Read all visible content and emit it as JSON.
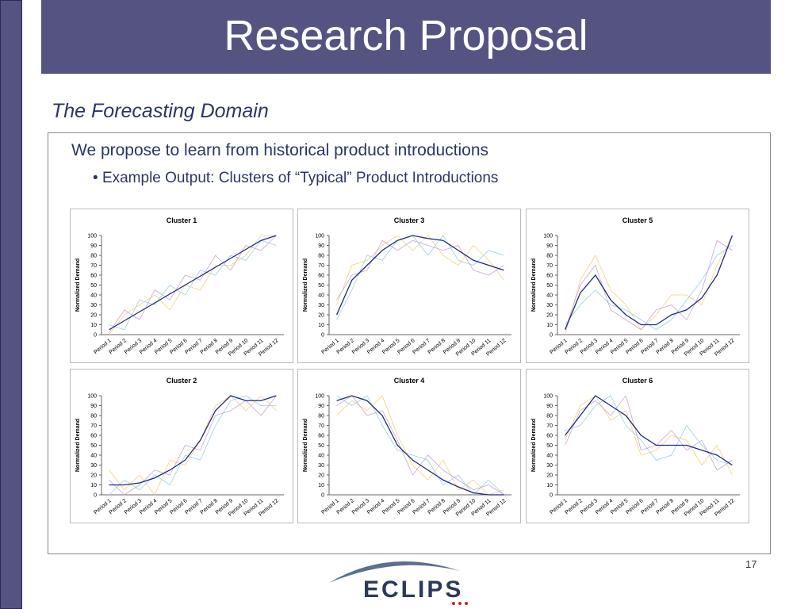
{
  "title": "Research Proposal",
  "subtitle": "The Forecasting Domain",
  "bullets": [
    "We propose to learn from historical product introductions",
    "Example Output: Clusters of “Typical” Product Introductions"
  ],
  "page_number": "17",
  "logo": "ECLIPS",
  "chart_data": [
    {
      "type": "line",
      "title": "Cluster 1",
      "ylabel": "Normalized Demand",
      "categories": [
        "Period 1",
        "Period 2",
        "Period 3",
        "Period 4",
        "Period 5",
        "Period 6",
        "Period 7",
        "Period 8",
        "Period 9",
        "Period 10",
        "Period 11",
        "Period 12"
      ],
      "ylim": [
        0,
        100
      ],
      "yticks": [
        0,
        10,
        20,
        30,
        40,
        50,
        60,
        70,
        80,
        90,
        100
      ],
      "series": [
        {
          "color": "#f5d27a",
          "values": [
            0,
            20,
            30,
            40,
            25,
            50,
            45,
            70,
            70,
            80,
            100,
            100
          ]
        },
        {
          "color": "#9ad0e8",
          "values": [
            10,
            5,
            35,
            30,
            50,
            40,
            65,
            60,
            80,
            75,
            95,
            90
          ]
        },
        {
          "color": "#c9a7d8",
          "values": [
            2,
            25,
            15,
            45,
            35,
            60,
            55,
            80,
            65,
            90,
            85,
            100
          ]
        },
        {
          "color": "#1f2a80",
          "values": [
            5,
            14,
            23,
            32,
            41,
            50,
            59,
            68,
            77,
            86,
            95,
            100
          ]
        }
      ]
    },
    {
      "type": "line",
      "title": "Cluster 3",
      "ylabel": "Normalized Demand",
      "categories": [
        "Period 1",
        "Period 2",
        "Period 3",
        "Period 4",
        "Period 5",
        "Period 6",
        "Period 7",
        "Period 8",
        "Period 9",
        "Period 10",
        "Period 11",
        "Period 12"
      ],
      "ylim": [
        0,
        100
      ],
      "yticks": [
        0,
        10,
        20,
        30,
        40,
        50,
        60,
        70,
        80,
        90,
        100
      ],
      "series": [
        {
          "color": "#f5d27a",
          "values": [
            30,
            70,
            75,
            90,
            100,
            85,
            100,
            80,
            70,
            90,
            75,
            55
          ]
        },
        {
          "color": "#9ad0e8",
          "values": [
            15,
            45,
            80,
            75,
            95,
            100,
            80,
            100,
            75,
            70,
            85,
            80
          ]
        },
        {
          "color": "#c9a7d8",
          "values": [
            35,
            60,
            65,
            95,
            85,
            95,
            90,
            85,
            90,
            65,
            60,
            70
          ]
        },
        {
          "color": "#1f2a80",
          "values": [
            20,
            55,
            70,
            85,
            95,
            100,
            97,
            95,
            85,
            75,
            70,
            65
          ]
        }
      ]
    },
    {
      "type": "line",
      "title": "Cluster 5",
      "ylabel": "Normalized Demand",
      "categories": [
        "Period 1",
        "Period 2",
        "Period 3",
        "Period 4",
        "Period 5",
        "Period 6",
        "Period 7",
        "Period 8",
        "Period 9",
        "Period 10",
        "Period 11",
        "Period 12"
      ],
      "ylim": [
        0,
        100
      ],
      "yticks": [
        0,
        10,
        20,
        30,
        40,
        50,
        60,
        70,
        80,
        90,
        100
      ],
      "series": [
        {
          "color": "#f5d27a",
          "values": [
            0,
            55,
            80,
            45,
            30,
            5,
            20,
            40,
            40,
            30,
            70,
            100
          ]
        },
        {
          "color": "#9ad0e8",
          "values": [
            10,
            30,
            45,
            30,
            25,
            15,
            5,
            15,
            35,
            55,
            80,
            90
          ]
        },
        {
          "color": "#c9a7d8",
          "values": [
            5,
            50,
            70,
            25,
            15,
            5,
            25,
            30,
            15,
            45,
            95,
            85
          ]
        },
        {
          "color": "#1f2a80",
          "values": [
            5,
            42,
            60,
            35,
            20,
            10,
            10,
            20,
            25,
            37,
            60,
            100
          ]
        }
      ]
    },
    {
      "type": "line",
      "title": "Cluster 2",
      "ylabel": "Normalized Demand",
      "categories": [
        "Period 1",
        "Period 2",
        "Period 3",
        "Period 4",
        "Period 5",
        "Period 6",
        "Period 7",
        "Period 8",
        "Period 9",
        "Period 10",
        "Period 11",
        "Period 12"
      ],
      "ylim": [
        0,
        100
      ],
      "yticks": [
        0,
        10,
        20,
        30,
        40,
        50,
        60,
        70,
        80,
        90,
        100
      ],
      "series": [
        {
          "color": "#f5d27a",
          "values": [
            25,
            5,
            20,
            0,
            35,
            30,
            55,
            90,
            100,
            85,
            100,
            85
          ]
        },
        {
          "color": "#9ad0e8",
          "values": [
            0,
            15,
            5,
            20,
            10,
            40,
            35,
            70,
            95,
            100,
            90,
            90
          ]
        },
        {
          "color": "#c9a7d8",
          "values": [
            15,
            0,
            10,
            25,
            20,
            50,
            45,
            80,
            85,
            95,
            80,
            100
          ]
        },
        {
          "color": "#1f2a80",
          "values": [
            10,
            10,
            12,
            17,
            25,
            35,
            55,
            85,
            100,
            95,
            95,
            100
          ]
        }
      ]
    },
    {
      "type": "line",
      "title": "Cluster 4",
      "ylabel": "Normalized Demand",
      "categories": [
        "Period 1",
        "Period 2",
        "Period 3",
        "Period 4",
        "Period 5",
        "Period 6",
        "Period 7",
        "Period 8",
        "Period 9",
        "Period 10",
        "Period 11",
        "Period 12"
      ],
      "ylim": [
        0,
        100
      ],
      "yticks": [
        0,
        10,
        20,
        30,
        40,
        50,
        60,
        70,
        80,
        90,
        100
      ],
      "series": [
        {
          "color": "#f5d27a",
          "values": [
            80,
            95,
            85,
            100,
            60,
            30,
            15,
            35,
            5,
            15,
            0,
            5
          ]
        },
        {
          "color": "#9ad0e8",
          "values": [
            100,
            90,
            100,
            70,
            45,
            40,
            35,
            10,
            20,
            0,
            15,
            0
          ]
        },
        {
          "color": "#c9a7d8",
          "values": [
            90,
            100,
            80,
            85,
            55,
            20,
            40,
            25,
            15,
            5,
            10,
            0
          ]
        },
        {
          "color": "#1f2a80",
          "values": [
            95,
            100,
            95,
            80,
            50,
            35,
            25,
            15,
            8,
            2,
            0,
            0
          ]
        }
      ]
    },
    {
      "type": "line",
      "title": "Cluster 6",
      "ylabel": "Normalized Demand",
      "categories": [
        "Period 1",
        "Period 2",
        "Period 3",
        "Period 4",
        "Period 5",
        "Period 6",
        "Period 7",
        "Period 8",
        "Period 9",
        "Period 10",
        "Period 11",
        "Period 12"
      ],
      "ylim": [
        0,
        100
      ],
      "yticks": [
        0,
        10,
        20,
        30,
        40,
        50,
        60,
        70,
        80,
        90,
        100
      ],
      "series": [
        {
          "color": "#f5d27a",
          "values": [
            55,
            90,
            100,
            75,
            85,
            40,
            45,
            60,
            55,
            30,
            50,
            20
          ]
        },
        {
          "color": "#9ad0e8",
          "values": [
            65,
            70,
            90,
            100,
            70,
            55,
            35,
            40,
            70,
            50,
            35,
            30
          ]
        },
        {
          "color": "#c9a7d8",
          "values": [
            50,
            85,
            95,
            80,
            100,
            45,
            50,
            65,
            45,
            55,
            25,
            35
          ]
        },
        {
          "color": "#1f2a80",
          "values": [
            60,
            80,
            100,
            90,
            80,
            60,
            50,
            50,
            50,
            45,
            40,
            30
          ]
        }
      ]
    }
  ]
}
